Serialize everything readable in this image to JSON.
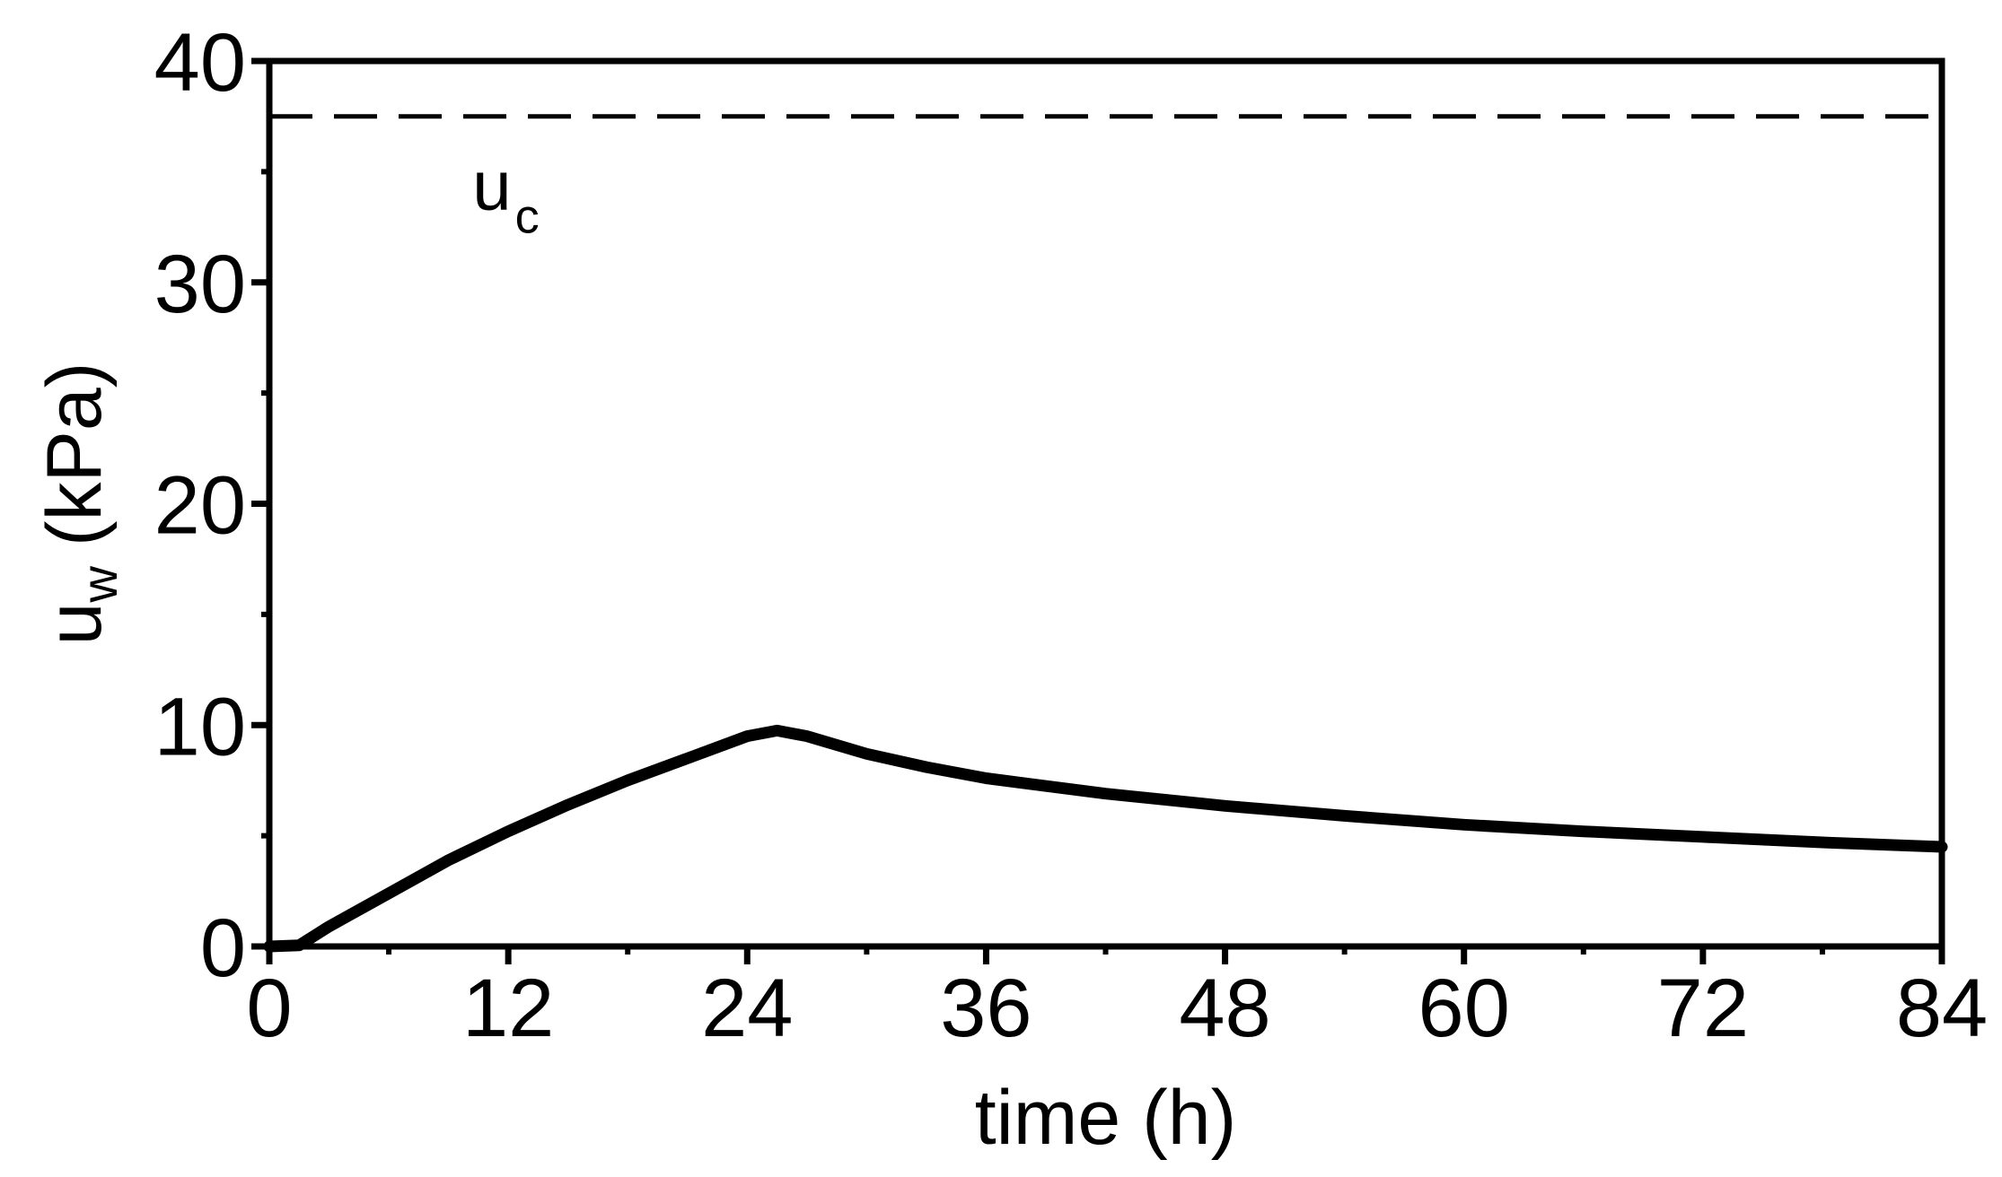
{
  "chart_data": {
    "type": "line",
    "title": "",
    "xlabel": "time (h)",
    "ylabel": {
      "main": "u",
      "sub": "w",
      "unit": "(kPa)"
    },
    "xlim": [
      0,
      84
    ],
    "ylim": [
      0,
      40
    ],
    "xticks": [
      0,
      12,
      24,
      36,
      48,
      60,
      72,
      84
    ],
    "yticks": [
      0,
      10,
      20,
      30,
      40
    ],
    "x_minor_step": 6,
    "y_minor_step": 5,
    "grid": false,
    "series": [
      {
        "color": "#000000",
        "style": "solid",
        "points": [
          [
            0,
            0
          ],
          [
            1.5,
            0.05
          ],
          [
            3,
            0.9
          ],
          [
            6,
            2.4
          ],
          [
            9,
            3.9
          ],
          [
            12,
            5.2
          ],
          [
            15,
            6.4
          ],
          [
            18,
            7.5
          ],
          [
            21,
            8.5
          ],
          [
            24,
            9.5
          ],
          [
            25.5,
            9.75
          ],
          [
            27,
            9.5
          ],
          [
            30,
            8.7
          ],
          [
            33,
            8.1
          ],
          [
            36,
            7.6
          ],
          [
            42,
            6.9
          ],
          [
            48,
            6.35
          ],
          [
            54,
            5.9
          ],
          [
            60,
            5.5
          ],
          [
            66,
            5.2
          ],
          [
            72,
            4.95
          ],
          [
            78,
            4.7
          ],
          [
            84,
            4.5
          ]
        ]
      },
      {
        "color": "#000000",
        "style": "dashed",
        "points": [
          [
            0,
            37.5
          ],
          [
            84,
            37.5
          ]
        ]
      }
    ],
    "annotations": [
      {
        "main": "u",
        "sub": "c",
        "x": 10.2,
        "y": 33.3
      }
    ]
  }
}
